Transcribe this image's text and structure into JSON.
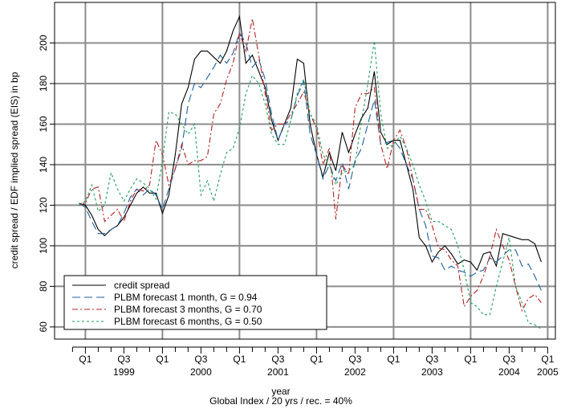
{
  "chart_data": {
    "type": "line",
    "ylabel": "credit spread / EDF implied spread (EIS) in bp",
    "xlabel": "year",
    "xlabel_sub": "Global Index / 20 yrs / rec. = 40%",
    "xlim": [
      1998.6,
      2005.1
    ],
    "ylim": [
      54,
      220
    ],
    "yticks": [
      60,
      80,
      100,
      120,
      140,
      160,
      180,
      200
    ],
    "xticks": [
      {
        "value": 1999,
        "label": "Q1"
      },
      {
        "value": 1999.5,
        "label": "Q3"
      },
      {
        "value": 2000,
        "label": "Q1"
      },
      {
        "value": 2000.5,
        "label": "Q3"
      },
      {
        "value": 2001,
        "label": "Q1"
      },
      {
        "value": 2001.5,
        "label": "Q3"
      },
      {
        "value": 2002,
        "label": "Q1"
      },
      {
        "value": 2002.5,
        "label": "Q3"
      },
      {
        "value": 2003,
        "label": "Q1"
      },
      {
        "value": 2003.5,
        "label": "Q3"
      },
      {
        "value": 2004,
        "label": "Q1"
      },
      {
        "value": 2004.5,
        "label": "Q3"
      },
      {
        "value": 2005,
        "label": "Q1"
      }
    ],
    "year_labels": [
      {
        "value": 1999.5,
        "label": "1999"
      },
      {
        "value": 2000.5,
        "label": "2000"
      },
      {
        "value": 2001.5,
        "label": "2001"
      },
      {
        "value": 2002.5,
        "label": "2002"
      },
      {
        "value": 2003.5,
        "label": "2003"
      },
      {
        "value": 2004.5,
        "label": "2004"
      },
      {
        "value": 2005,
        "label": "2005"
      }
    ],
    "minor_xticks": [
      1998.833,
      1999.167,
      1999.333,
      1999.667,
      1999.833,
      2000.167,
      2000.333,
      2000.667,
      2000.833,
      2001.167,
      2001.333,
      2001.667,
      2001.833,
      2002.167,
      2002.333,
      2002.667,
      2002.833,
      2003.167,
      2003.333,
      2003.667,
      2003.833,
      2004.167,
      2004.333,
      2004.667,
      2004.833
    ],
    "grid": true,
    "legend": "bottom-left",
    "x": [
      1998.917,
      1999,
      1999.083,
      1999.167,
      1999.25,
      1999.333,
      1999.417,
      1999.5,
      1999.583,
      1999.667,
      1999.75,
      1999.833,
      1999.917,
      2000,
      2000.083,
      2000.167,
      2000.25,
      2000.333,
      2000.417,
      2000.5,
      2000.583,
      2000.667,
      2000.75,
      2000.833,
      2000.917,
      2001,
      2001.083,
      2001.167,
      2001.25,
      2001.333,
      2001.417,
      2001.5,
      2001.583,
      2001.667,
      2001.75,
      2001.833,
      2001.917,
      2002,
      2002.083,
      2002.167,
      2002.25,
      2002.333,
      2002.417,
      2002.5,
      2002.583,
      2002.667,
      2002.75,
      2002.833,
      2002.917,
      2003,
      2003.083,
      2003.167,
      2003.25,
      2003.333,
      2003.417,
      2003.5,
      2003.583,
      2003.667,
      2003.75,
      2003.833,
      2003.917,
      2004,
      2004.083,
      2004.167,
      2004.25,
      2004.333,
      2004.417,
      2004.5,
      2004.583,
      2004.667,
      2004.75,
      2004.833,
      2004.917
    ],
    "series": [
      {
        "name": "credit spread",
        "color": "#000000",
        "dash": "none",
        "values": [
          121,
          120,
          115,
          108,
          105,
          108,
          110,
          114,
          120,
          126,
          129,
          126,
          126,
          116,
          125,
          145,
          170,
          178,
          192,
          196,
          196,
          193,
          190,
          196,
          206,
          213,
          190,
          194,
          186,
          178,
          162,
          152,
          160,
          168,
          192,
          190,
          160,
          145,
          134,
          146,
          137,
          156,
          146,
          155,
          163,
          168,
          186,
          156,
          150,
          152,
          152,
          140,
          128,
          104,
          100,
          92,
          97,
          100,
          96,
          91,
          93,
          92,
          88,
          96,
          97,
          90,
          106,
          105,
          104,
          103,
          103,
          101,
          92
        ]
      },
      {
        "name": "PLBM forecast 1 month, G = 0.94",
        "color": "#1f5f9e",
        "dash": "10,5",
        "values": [
          121,
          119,
          112,
          106,
          106,
          108,
          110,
          116,
          124,
          128,
          125,
          128,
          125,
          118,
          128,
          138,
          148,
          170,
          180,
          178,
          183,
          188,
          194,
          190,
          195,
          205,
          200,
          188,
          192,
          182,
          165,
          152,
          160,
          162,
          174,
          181,
          155,
          145,
          133,
          140,
          132,
          141,
          128,
          142,
          148,
          160,
          172,
          150,
          151,
          152,
          148,
          140,
          133,
          118,
          110,
          95,
          94,
          88,
          90,
          88,
          87,
          85,
          87,
          88,
          94,
          92,
          95,
          98,
          98,
          90,
          91,
          85,
          78
        ]
      },
      {
        "name": "PLBM forecast 3 months, G = 0.70",
        "color": "#b22222",
        "dash": "7,3,2,3",
        "values": [
          120,
          121,
          128,
          129,
          112,
          115,
          118,
          112,
          122,
          128,
          127,
          130,
          152,
          145,
          130,
          138,
          150,
          140,
          142,
          142,
          144,
          165,
          170,
          182,
          190,
          205,
          196,
          212,
          194,
          175,
          157,
          160,
          160,
          165,
          170,
          176,
          165,
          158,
          140,
          148,
          113,
          140,
          135,
          168,
          175,
          175,
          178,
          150,
          138,
          152,
          157,
          148,
          133,
          118,
          118,
          110,
          99,
          98,
          93,
          90,
          70,
          75,
          78,
          85,
          95,
          108,
          100,
          93,
          80,
          68,
          74,
          76,
          72
        ]
      },
      {
        "name": "PLBM forecast 6 months, G = 0.50",
        "color": "#1e9e5a",
        "dash": "3,3",
        "values": [
          120,
          122,
          130,
          117,
          120,
          136,
          128,
          122,
          128,
          133,
          131,
          128,
          123,
          142,
          166,
          165,
          160,
          155,
          160,
          125,
          132,
          122,
          135,
          146,
          148,
          158,
          175,
          184,
          180,
          170,
          155,
          150,
          150,
          162,
          175,
          182,
          165,
          160,
          145,
          140,
          130,
          136,
          137,
          140,
          162,
          180,
          201,
          165,
          148,
          150,
          154,
          148,
          140,
          130,
          122,
          112,
          112,
          110,
          108,
          100,
          88,
          72,
          70,
          66,
          66,
          80,
          92,
          104,
          80,
          72,
          62,
          61,
          59
        ]
      }
    ]
  }
}
